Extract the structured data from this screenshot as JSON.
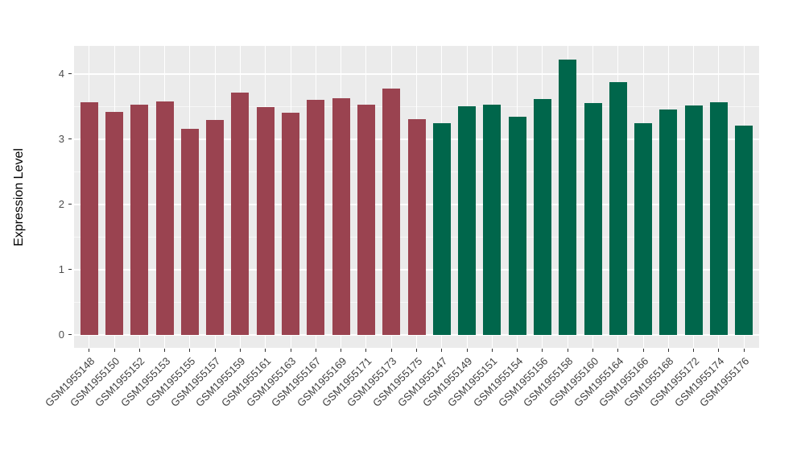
{
  "chart_data": {
    "type": "bar",
    "title": "",
    "xlabel": "",
    "ylabel": "Expression Level",
    "yticks": [
      0,
      1,
      2,
      3,
      4
    ],
    "minor_yticks": [
      0.5,
      1.5,
      2.5,
      3.5
    ],
    "ylim": [
      -0.2,
      4.43
    ],
    "grid": "white gridlines on gray panel, vertical gridline at each bar center",
    "legend_position": "none",
    "categories": [
      "GSM1955148",
      "GSM1955150",
      "GSM1955152",
      "GSM1955153",
      "GSM1955155",
      "GSM1955157",
      "GSM1955159",
      "GSM1955161",
      "GSM1955163",
      "GSM1955167",
      "GSM1955169",
      "GSM1955171",
      "GSM1955173",
      "GSM1955175",
      "GSM1955147",
      "GSM1955149",
      "GSM1955151",
      "GSM1955154",
      "GSM1955156",
      "GSM1955158",
      "GSM1955160",
      "GSM1955164",
      "GSM1955166",
      "GSM1955168",
      "GSM1955172",
      "GSM1955174",
      "GSM1955176"
    ],
    "values": [
      3.57,
      3.42,
      3.53,
      3.58,
      3.16,
      3.29,
      3.71,
      3.49,
      3.4,
      3.6,
      3.63,
      3.53,
      3.77,
      3.31,
      3.24,
      3.5,
      3.53,
      3.34,
      3.61,
      4.22,
      3.55,
      3.88,
      3.25,
      3.46,
      3.52,
      3.57,
      3.21
    ],
    "groups": [
      {
        "name": "group-1",
        "color": "#9A4350",
        "start_index": 0,
        "count": 14
      },
      {
        "name": "group-2",
        "color": "#00664B",
        "start_index": 14,
        "count": 13
      }
    ]
  },
  "colors": {
    "bar_maroon": "#9A4350",
    "bar_green": "#00664B",
    "panel_background": "#EBEBEB",
    "gridline": "#FFFFFF",
    "axis_text": "#4D4D4D",
    "tick_mark": "#333333",
    "figure_background": "#FFFFFF"
  }
}
